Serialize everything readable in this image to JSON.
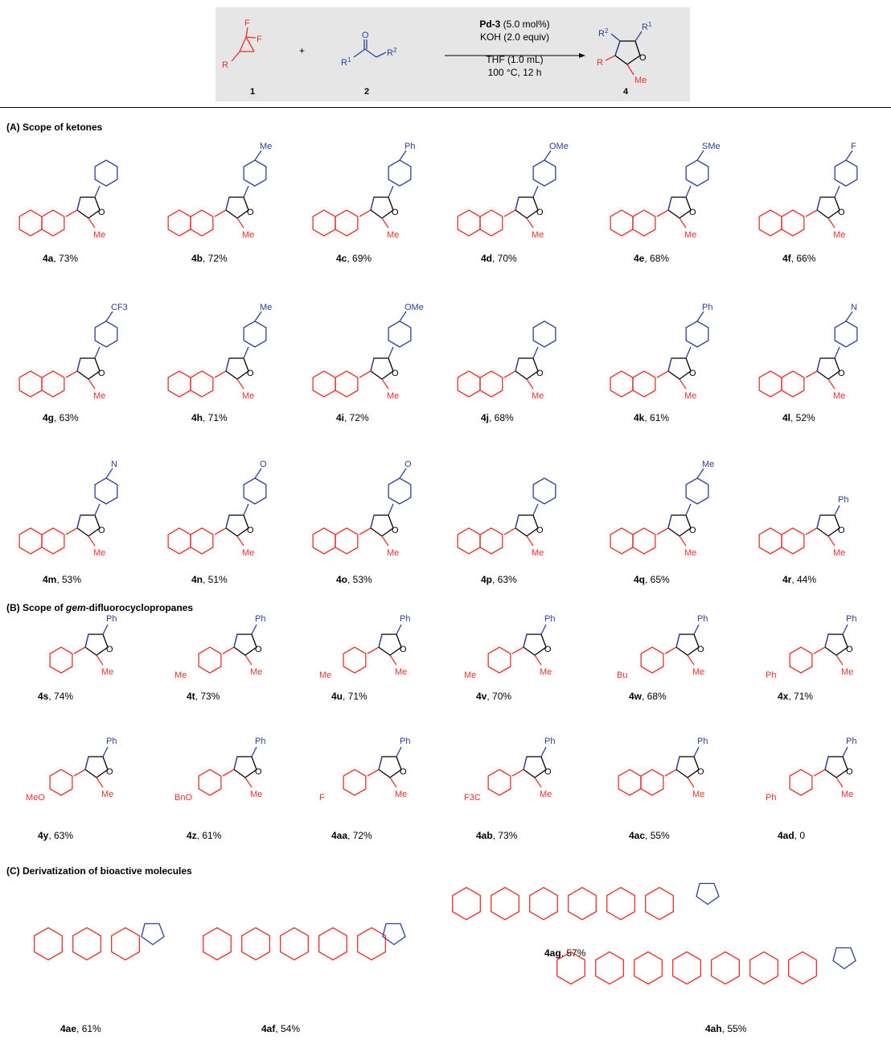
{
  "scheme": {
    "reagent1_label": "1",
    "reagent2_label": "2",
    "product_label": "4",
    "plus": "+",
    "atoms": {
      "F": "F",
      "R": "R",
      "R1": "R",
      "R1_sup": "1",
      "R2": "R",
      "R2_sup": "2",
      "O": "O",
      "Me": "Me"
    },
    "conditions": {
      "catalyst_bold": "Pd-3",
      "catalyst_rest": " (5.0 mol%)",
      "base": "KOH (2.0 equiv)",
      "solvent": "THF (1.0 mL)",
      "temp_time": "100 °C, 12 h"
    }
  },
  "sections": {
    "A": "(A) Scope of ketones",
    "B_prefix": "(B) Scope of ",
    "B_italic": "gem",
    "B_suffix": "-difluorocyclopropanes",
    "C": "(C) Derivatization of bioactive molecules"
  },
  "colors": {
    "red": "#e8302a",
    "blue": "#2c3f9b",
    "scheme_bg": "#e6e6e6"
  },
  "compounds": [
    {
      "id": "4a",
      "yield": ", 73%",
      "sub": ""
    },
    {
      "id": "4b",
      "yield": ", 72%",
      "sub": "Me"
    },
    {
      "id": "4c",
      "yield": ", 69%",
      "sub": "Ph"
    },
    {
      "id": "4d",
      "yield": ", 70%",
      "sub": "OMe"
    },
    {
      "id": "4e",
      "yield": ", 68%",
      "sub": "SMe"
    },
    {
      "id": "4f",
      "yield": ", 66%",
      "sub": "F"
    },
    {
      "id": "4g",
      "yield": ", 63%",
      "sub": "CF3"
    },
    {
      "id": "4h",
      "yield": ", 71%",
      "sub": "Me"
    },
    {
      "id": "4i",
      "yield": ", 72%",
      "sub": "OMe"
    },
    {
      "id": "4j",
      "yield": ", 68%",
      "sub": ""
    },
    {
      "id": "4k",
      "yield": ", 61%",
      "sub": "Ph"
    },
    {
      "id": "4l",
      "yield": ", 52%",
      "sub": "N"
    },
    {
      "id": "4m",
      "yield": ", 53%",
      "sub": "N"
    },
    {
      "id": "4n",
      "yield": ", 51%",
      "sub": "O"
    },
    {
      "id": "4o",
      "yield": ", 53%",
      "sub": "O"
    },
    {
      "id": "4p",
      "yield": ", 63%",
      "sub": ""
    },
    {
      "id": "4q",
      "yield": ", 65%",
      "sub": "Me"
    },
    {
      "id": "4r",
      "yield": ", 44%",
      "sub": "Ph"
    },
    {
      "id": "4s",
      "yield": ", 74%",
      "sub": ""
    },
    {
      "id": "4t",
      "yield": ", 73%",
      "sub": "Me"
    },
    {
      "id": "4u",
      "yield": ", 71%",
      "sub": "Me"
    },
    {
      "id": "4v",
      "yield": ", 70%",
      "sub": "Me"
    },
    {
      "id": "4w",
      "yield": ", 68%",
      "sub": "Bu"
    },
    {
      "id": "4x",
      "yield": ", 71%",
      "sub": "Ph"
    },
    {
      "id": "4y",
      "yield": ", 63%",
      "sub": "MeO"
    },
    {
      "id": "4z",
      "yield": ", 61%",
      "sub": "BnO"
    },
    {
      "id": "4aa",
      "yield": ", 72%",
      "sub": "F"
    },
    {
      "id": "4ab",
      "yield": ", 73%",
      "sub": "F3C"
    },
    {
      "id": "4ac",
      "yield": ", 55%",
      "sub": ""
    },
    {
      "id": "4ad",
      "yield": ", 0",
      "sub": "Ph"
    },
    {
      "id": "4ae",
      "yield": ", 61%",
      "sub": ""
    },
    {
      "id": "4af",
      "yield": ", 54%",
      "sub": ""
    },
    {
      "id": "4ag",
      "yield": ", 57%",
      "sub": ""
    },
    {
      "id": "4ah",
      "yield": ", 55%",
      "sub": ""
    }
  ]
}
